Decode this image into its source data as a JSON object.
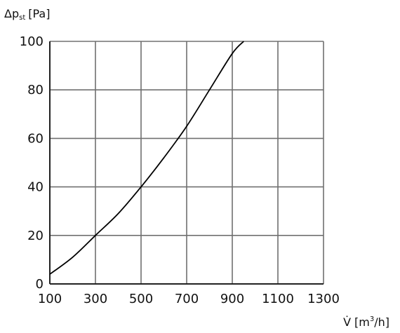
{
  "chart_data": {
    "type": "line",
    "title": "",
    "ylabel": {
      "prefix": "Δp",
      "sub": "st",
      "unit": "[Pa]"
    },
    "xlabel": {
      "prefix": "V̇",
      "unit_open": "[m",
      "unit_sup": "3",
      "unit_close": "/h]"
    },
    "xlim": [
      100,
      1300
    ],
    "ylim": [
      0,
      100
    ],
    "x_ticks": [
      100,
      300,
      500,
      700,
      900,
      1100,
      1300
    ],
    "y_ticks": [
      0,
      20,
      40,
      60,
      80,
      100
    ],
    "grid": true,
    "series": [
      {
        "color": "#000000",
        "x": [
          100,
          200,
          300,
          400,
          500,
          600,
          700,
          800,
          900,
          950
        ],
        "y": [
          4,
          11,
          20,
          29,
          40,
          52,
          65,
          80,
          95,
          100
        ]
      }
    ]
  }
}
